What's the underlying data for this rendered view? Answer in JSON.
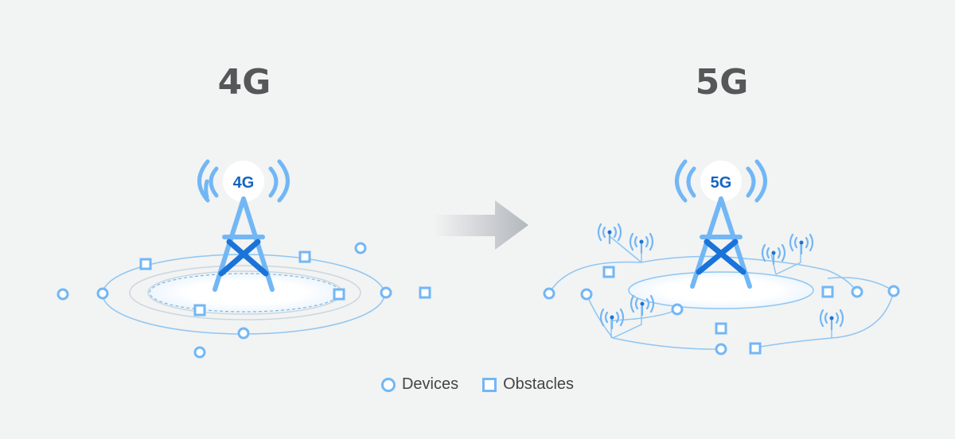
{
  "panels": {
    "left": {
      "title": "4G",
      "tower_label": "4G"
    },
    "right": {
      "title": "5G",
      "tower_label": "5G"
    }
  },
  "legend": {
    "devices_label": "Devices",
    "obstacles_label": "Obstacles"
  },
  "colors": {
    "background": "#f2f3f3",
    "tower_light": "#72b7f5",
    "tower_dark": "#1a73d9",
    "label_blue": "#1565c0",
    "title_gray": "#555759",
    "ring_light": "#b9dbf6",
    "ring_gray": "#c9d7e0",
    "arrow": "#b9bec3"
  }
}
